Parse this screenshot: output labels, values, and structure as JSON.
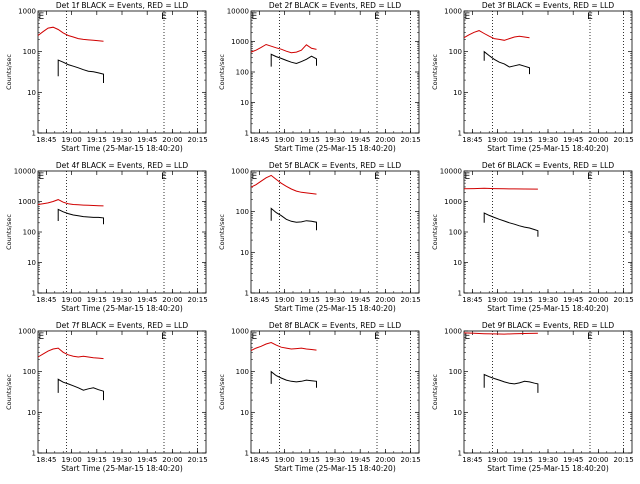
{
  "figure": {
    "event_marker_label": "E",
    "colors": {
      "events": "#000000",
      "lld": "#d00000",
      "axes": "#000000",
      "background": "#ffffff"
    }
  },
  "chart_data": [
    {
      "type": "line",
      "title": "Det 1f BLACK = Events, RED = LLD",
      "xlabel": "Start Time (25-Mar-15 18:40:20)",
      "ylabel": "Counts/sec",
      "y_scale": "log",
      "ylim": [
        1,
        1000
      ],
      "y_ticks": [
        "1",
        "10",
        "100",
        "1000"
      ],
      "xlim": [
        "18:40",
        "20:20"
      ],
      "x_ticks": [
        "18:45",
        "19:00",
        "19:15",
        "19:30",
        "19:45",
        "20:00",
        "20:15"
      ],
      "vlines_dotted": [
        "18:57",
        "19:55",
        "20:15"
      ],
      "event_markers": [
        "18:42",
        "19:55"
      ],
      "series": [
        {
          "name": "LLD",
          "color": "#d00000",
          "x": [
            "18:40",
            "18:43",
            "18:46",
            "18:49",
            "18:52",
            "18:55",
            "18:58",
            "19:01",
            "19:04",
            "19:07",
            "19:10",
            "19:13",
            "19:16",
            "19:19"
          ],
          "values": [
            250,
            310,
            380,
            400,
            350,
            290,
            250,
            230,
            210,
            200,
            195,
            190,
            185,
            180
          ]
        },
        {
          "name": "Events",
          "color": "#000000",
          "x": [
            "18:52",
            "18:52",
            "18:55",
            "18:58",
            "19:01",
            "19:04",
            "19:07",
            "19:10",
            "19:13",
            "19:16",
            "19:19",
            "19:19"
          ],
          "values": [
            25,
            62,
            55,
            48,
            44,
            40,
            36,
            33,
            32,
            30,
            28,
            17
          ]
        }
      ]
    },
    {
      "type": "line",
      "title": "Det 2f BLACK = Events, RED = LLD",
      "xlabel": "Start Time (25-Mar-15 18:40:20)",
      "ylabel": "Counts/sec",
      "y_scale": "log",
      "ylim": [
        1,
        10000
      ],
      "y_ticks": [
        "1",
        "10",
        "100",
        "1000",
        "10000"
      ],
      "xlim": [
        "18:40",
        "20:20"
      ],
      "x_ticks": [
        "18:45",
        "19:00",
        "19:15",
        "19:30",
        "19:45",
        "20:00",
        "20:15"
      ],
      "vlines_dotted": [
        "18:57",
        "19:55",
        "20:15"
      ],
      "event_markers": [
        "18:42",
        "19:55"
      ],
      "series": [
        {
          "name": "LLD",
          "color": "#d00000",
          "x": [
            "18:40",
            "18:43",
            "18:46",
            "18:49",
            "18:52",
            "18:55",
            "18:58",
            "19:01",
            "19:04",
            "19:07",
            "19:10",
            "19:13",
            "19:16",
            "19:19"
          ],
          "values": [
            450,
            520,
            640,
            800,
            700,
            620,
            560,
            480,
            430,
            450,
            520,
            780,
            600,
            550
          ]
        },
        {
          "name": "Events",
          "color": "#000000",
          "x": [
            "18:52",
            "18:52",
            "18:55",
            "18:58",
            "19:01",
            "19:04",
            "19:07",
            "19:10",
            "19:13",
            "19:16",
            "19:19",
            "19:19"
          ],
          "values": [
            150,
            380,
            320,
            280,
            240,
            210,
            190,
            220,
            260,
            330,
            270,
            160
          ]
        }
      ]
    },
    {
      "type": "line",
      "title": "Det 3f BLACK = Events, RED = LLD",
      "xlabel": "Start Time (25-Mar-15 18:40:20)",
      "ylabel": "Counts/sec",
      "y_scale": "log",
      "ylim": [
        1,
        1000
      ],
      "y_ticks": [
        "1",
        "10",
        "100",
        "1000"
      ],
      "xlim": [
        "18:40",
        "20:20"
      ],
      "x_ticks": [
        "18:45",
        "19:00",
        "19:15",
        "19:30",
        "19:45",
        "20:00",
        "20:15"
      ],
      "vlines_dotted": [
        "18:57",
        "19:55",
        "20:15"
      ],
      "event_markers": [
        "18:42",
        "19:55"
      ],
      "series": [
        {
          "name": "LLD",
          "color": "#d00000",
          "x": [
            "18:40",
            "18:43",
            "18:46",
            "18:49",
            "18:52",
            "18:55",
            "18:58",
            "19:01",
            "19:04",
            "19:07",
            "19:10",
            "19:13",
            "19:16",
            "19:19"
          ],
          "values": [
            220,
            260,
            300,
            330,
            280,
            240,
            210,
            200,
            190,
            210,
            230,
            240,
            230,
            220
          ]
        },
        {
          "name": "Events",
          "color": "#000000",
          "x": [
            "18:52",
            "18:52",
            "18:55",
            "18:58",
            "19:01",
            "19:04",
            "19:07",
            "19:10",
            "19:13",
            "19:16",
            "19:19",
            "19:19"
          ],
          "values": [
            60,
            100,
            80,
            65,
            55,
            50,
            42,
            45,
            48,
            44,
            40,
            28
          ]
        }
      ]
    },
    {
      "type": "line",
      "title": "Det 4f BLACK = Events, RED = LLD",
      "xlabel": "Start Time (25-Mar-15 18:40:20)",
      "ylabel": "Counts/sec",
      "y_scale": "log",
      "ylim": [
        1,
        10000
      ],
      "y_ticks": [
        "1",
        "10",
        "100",
        "1000",
        "10000"
      ],
      "xlim": [
        "18:40",
        "20:20"
      ],
      "x_ticks": [
        "18:45",
        "19:00",
        "19:15",
        "19:30",
        "19:45",
        "20:00",
        "20:15"
      ],
      "vlines_dotted": [
        "18:57",
        "19:55",
        "20:15"
      ],
      "event_markers": [
        "18:42",
        "19:55"
      ],
      "series": [
        {
          "name": "LLD",
          "color": "#d00000",
          "x": [
            "18:40",
            "18:43",
            "18:46",
            "18:49",
            "18:52",
            "18:55",
            "18:58",
            "19:01",
            "19:04",
            "19:07",
            "19:10",
            "19:13",
            "19:16",
            "19:19"
          ],
          "values": [
            800,
            850,
            900,
            1000,
            1150,
            950,
            850,
            800,
            780,
            760,
            750,
            740,
            730,
            720
          ]
        },
        {
          "name": "Events",
          "color": "#000000",
          "x": [
            "18:52",
            "18:52",
            "18:55",
            "18:58",
            "19:01",
            "19:04",
            "19:07",
            "19:10",
            "19:13",
            "19:16",
            "19:19",
            "19:19"
          ],
          "values": [
            230,
            550,
            460,
            400,
            360,
            340,
            320,
            310,
            300,
            300,
            290,
            180
          ]
        }
      ]
    },
    {
      "type": "line",
      "title": "Det 5f BLACK = Events, RED = LLD",
      "xlabel": "Start Time (25-Mar-15 18:40:20)",
      "ylabel": "Counts/sec",
      "y_scale": "log",
      "ylim": [
        1,
        1000
      ],
      "y_ticks": [
        "1",
        "10",
        "100",
        "1000"
      ],
      "xlim": [
        "18:40",
        "20:20"
      ],
      "x_ticks": [
        "18:45",
        "19:00",
        "19:15",
        "19:30",
        "19:45",
        "20:00",
        "20:15"
      ],
      "vlines_dotted": [
        "18:57",
        "19:55",
        "20:15"
      ],
      "event_markers": [
        "18:42",
        "19:55"
      ],
      "series": [
        {
          "name": "LLD",
          "color": "#d00000",
          "x": [
            "18:40",
            "18:43",
            "18:46",
            "18:49",
            "18:52",
            "18:55",
            "18:58",
            "19:01",
            "19:04",
            "19:07",
            "19:10",
            "19:13",
            "19:16",
            "19:19"
          ],
          "values": [
            400,
            460,
            560,
            680,
            780,
            620,
            500,
            420,
            360,
            320,
            300,
            290,
            280,
            270
          ]
        },
        {
          "name": "Events",
          "color": "#000000",
          "x": [
            "18:52",
            "18:52",
            "18:55",
            "18:58",
            "19:01",
            "19:04",
            "19:07",
            "19:10",
            "19:13",
            "19:16",
            "19:19",
            "19:19"
          ],
          "values": [
            60,
            120,
            95,
            80,
            65,
            58,
            55,
            56,
            60,
            58,
            55,
            35
          ]
        }
      ]
    },
    {
      "type": "line",
      "title": "Det 6f BLACK = Events, RED = LLD",
      "xlabel": "Start Time (25-Mar-15 18:40:20)",
      "ylabel": "Counts/sec",
      "y_scale": "log",
      "ylim": [
        1,
        10000
      ],
      "y_ticks": [
        "1",
        "10",
        "100",
        "1000",
        "10000"
      ],
      "xlim": [
        "18:40",
        "20:20"
      ],
      "x_ticks": [
        "18:45",
        "19:00",
        "19:15",
        "19:30",
        "19:45",
        "20:00",
        "20:15"
      ],
      "vlines_dotted": [
        "18:57",
        "19:55",
        "20:15"
      ],
      "event_markers": [
        "18:42",
        "19:55"
      ],
      "series": [
        {
          "name": "LLD",
          "color": "#d00000",
          "x": [
            "18:40",
            "18:46",
            "18:52",
            "18:58",
            "19:04",
            "19:10",
            "19:16",
            "19:24"
          ],
          "values": [
            2600,
            2650,
            2700,
            2650,
            2600,
            2580,
            2560,
            2550
          ]
        },
        {
          "name": "Events",
          "color": "#000000",
          "x": [
            "18:52",
            "18:52",
            "18:55",
            "18:58",
            "19:01",
            "19:04",
            "19:07",
            "19:10",
            "19:13",
            "19:16",
            "19:19",
            "19:22",
            "19:24",
            "19:24"
          ],
          "values": [
            200,
            420,
            350,
            300,
            260,
            230,
            200,
            180,
            160,
            145,
            135,
            120,
            110,
            70
          ]
        }
      ]
    },
    {
      "type": "line",
      "title": "Det 7f BLACK = Events, RED = LLD",
      "xlabel": "Start Time (25-Mar-15 18:40:20)",
      "ylabel": "Counts/sec",
      "y_scale": "log",
      "ylim": [
        1,
        1000
      ],
      "y_ticks": [
        "1",
        "10",
        "100",
        "1000"
      ],
      "xlim": [
        "18:40",
        "20:20"
      ],
      "x_ticks": [
        "18:45",
        "19:00",
        "19:15",
        "19:30",
        "19:45",
        "20:00",
        "20:15"
      ],
      "vlines_dotted": [
        "18:57",
        "19:55",
        "20:15"
      ],
      "event_markers": [
        "18:42",
        "19:55"
      ],
      "series": [
        {
          "name": "LLD",
          "color": "#d00000",
          "x": [
            "18:40",
            "18:43",
            "18:46",
            "18:49",
            "18:52",
            "18:55",
            "18:58",
            "19:01",
            "19:04",
            "19:07",
            "19:10",
            "19:13",
            "19:16",
            "19:19"
          ],
          "values": [
            230,
            270,
            320,
            360,
            380,
            300,
            260,
            240,
            230,
            240,
            230,
            220,
            215,
            210
          ]
        },
        {
          "name": "Events",
          "color": "#000000",
          "x": [
            "18:52",
            "18:52",
            "18:55",
            "18:58",
            "19:01",
            "19:04",
            "19:07",
            "19:10",
            "19:13",
            "19:16",
            "19:19",
            "19:19"
          ],
          "values": [
            30,
            65,
            55,
            50,
            45,
            40,
            35,
            38,
            40,
            36,
            33,
            20
          ]
        }
      ]
    },
    {
      "type": "line",
      "title": "Det 8f BLACK = Events, RED = LLD",
      "xlabel": "Start Time (25-Mar-15 18:40:20)",
      "ylabel": "Counts/sec",
      "y_scale": "log",
      "ylim": [
        1,
        1000
      ],
      "y_ticks": [
        "1",
        "10",
        "100",
        "1000"
      ],
      "xlim": [
        "18:40",
        "20:20"
      ],
      "x_ticks": [
        "18:45",
        "19:00",
        "19:15",
        "19:30",
        "19:45",
        "20:00",
        "20:15"
      ],
      "vlines_dotted": [
        "18:57",
        "19:55",
        "20:15"
      ],
      "event_markers": [
        "18:42",
        "19:55"
      ],
      "series": [
        {
          "name": "LLD",
          "color": "#d00000",
          "x": [
            "18:40",
            "18:43",
            "18:46",
            "18:49",
            "18:52",
            "18:55",
            "18:58",
            "19:01",
            "19:04",
            "19:07",
            "19:10",
            "19:13",
            "19:16",
            "19:19"
          ],
          "values": [
            330,
            380,
            420,
            480,
            520,
            450,
            400,
            380,
            360,
            370,
            380,
            360,
            350,
            340
          ]
        },
        {
          "name": "Events",
          "color": "#000000",
          "x": [
            "18:52",
            "18:52",
            "18:55",
            "18:58",
            "19:01",
            "19:04",
            "19:07",
            "19:10",
            "19:13",
            "19:16",
            "19:19",
            "19:19"
          ],
          "values": [
            50,
            100,
            80,
            70,
            62,
            58,
            56,
            58,
            62,
            60,
            58,
            40
          ]
        }
      ]
    },
    {
      "type": "line",
      "title": "Det 9f BLACK = Events, RED = LLD",
      "xlabel": "Start Time (25-Mar-15 18:40:20)",
      "ylabel": "Counts/sec",
      "y_scale": "log",
      "ylim": [
        1,
        1000
      ],
      "y_ticks": [
        "1",
        "10",
        "100",
        "1000"
      ],
      "xlim": [
        "18:40",
        "20:20"
      ],
      "x_ticks": [
        "18:45",
        "19:00",
        "19:15",
        "19:30",
        "19:45",
        "20:00",
        "20:15"
      ],
      "vlines_dotted": [
        "18:57",
        "19:55",
        "20:15"
      ],
      "event_markers": [
        "18:42",
        "19:55"
      ],
      "series": [
        {
          "name": "LLD",
          "color": "#d00000",
          "x": [
            "18:40",
            "18:46",
            "18:52",
            "18:58",
            "19:04",
            "19:10",
            "19:16",
            "19:24"
          ],
          "values": [
            900,
            880,
            860,
            850,
            840,
            860,
            870,
            880
          ]
        },
        {
          "name": "Events",
          "color": "#000000",
          "x": [
            "18:52",
            "18:52",
            "18:55",
            "18:58",
            "19:01",
            "19:04",
            "19:07",
            "19:10",
            "19:13",
            "19:16",
            "19:19",
            "19:22",
            "19:24",
            "19:24"
          ],
          "values": [
            40,
            85,
            75,
            68,
            62,
            56,
            52,
            50,
            53,
            58,
            56,
            52,
            50,
            30
          ]
        }
      ]
    }
  ]
}
